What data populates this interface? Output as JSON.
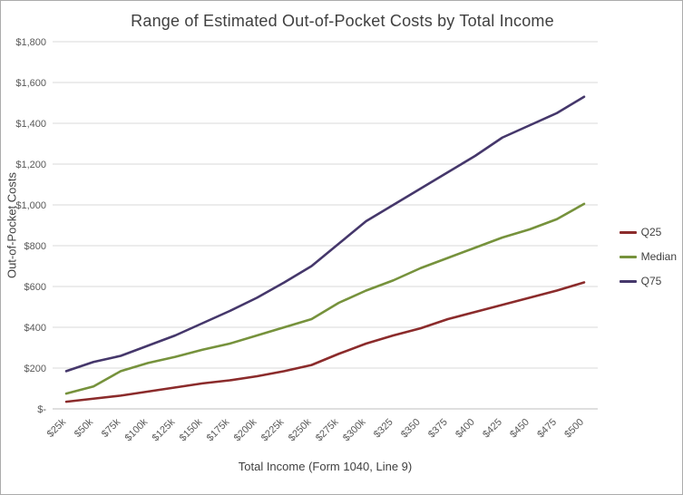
{
  "chart_data": {
    "type": "line",
    "title": "Range of Estimated Out-of-Pocket Costs by Total Income",
    "xlabel": "Total Income (Form 1040, Line 9)",
    "ylabel": "Out-of-Pocket Costs",
    "categories": [
      "$25k",
      "$50k",
      "$75k",
      "$100k",
      "$125k",
      "$150k",
      "$175k",
      "$200k",
      "$225k",
      "$250k",
      "$275k",
      "$300k",
      "$325",
      "$350",
      "$375",
      "$400",
      "$425",
      "$450",
      "$475",
      "$500"
    ],
    "y_ticks": [
      "$-",
      "$200",
      "$400",
      "$600",
      "$800",
      "$1,000",
      "$1,200",
      "$1,400",
      "$1,600",
      "$1,800"
    ],
    "ylim": [
      0,
      1800
    ],
    "grid": true,
    "legend_position": "right",
    "colors": {
      "q25": "#8B2B2B",
      "median": "#76923C",
      "q75": "#45376B",
      "gridline": "#D9D9D9",
      "axis_line": "#BFBFBF",
      "tick_text": "#595959",
      "title_text": "#404040"
    },
    "series": [
      {
        "name": "Q25",
        "color": "#8B2B2B",
        "values": [
          35,
          50,
          65,
          85,
          105,
          125,
          140,
          160,
          185,
          215,
          270,
          320,
          360,
          395,
          440,
          475,
          510,
          545,
          580,
          620
        ]
      },
      {
        "name": "Median",
        "color": "#76923C",
        "values": [
          75,
          110,
          185,
          225,
          255,
          290,
          320,
          360,
          400,
          440,
          520,
          580,
          630,
          690,
          740,
          790,
          840,
          880,
          930,
          1005
        ]
      },
      {
        "name": "Q75",
        "color": "#45376B",
        "values": [
          185,
          230,
          260,
          310,
          360,
          420,
          480,
          545,
          620,
          700,
          810,
          920,
          1000,
          1080,
          1160,
          1240,
          1330,
          1390,
          1450,
          1530
        ]
      }
    ]
  }
}
